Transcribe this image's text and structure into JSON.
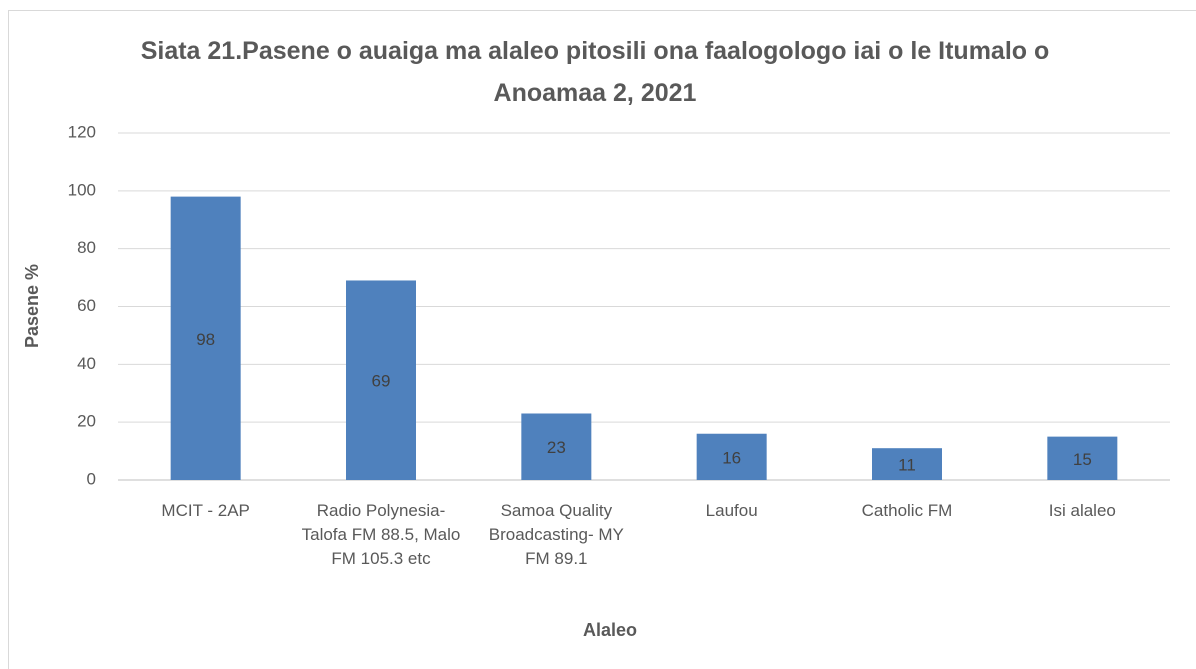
{
  "chart_data": {
    "type": "bar",
    "title": "Siata 21.Pasene o auaiga ma alaleo pitosili ona faalogologo iai o le Itumalo o Anoamaa 2, 2021",
    "x_label": "Alaleo",
    "y_label": "Pasene %",
    "categories": [
      "MCIT - 2AP",
      "Radio Polynesia-Talofa FM 88.5, Malo FM 105.3 etc",
      "Samoa Quality Broadcasting- MY FM 89.1",
      "Laufou",
      "Catholic FM",
      "Isi alaleo"
    ],
    "values": [
      98,
      69,
      23,
      16,
      11,
      15
    ],
    "color": "#4f81bd",
    "ylim": [
      0,
      120
    ],
    "yticks": [
      0,
      20,
      40,
      60,
      80,
      100,
      120
    ],
    "grid": true
  }
}
